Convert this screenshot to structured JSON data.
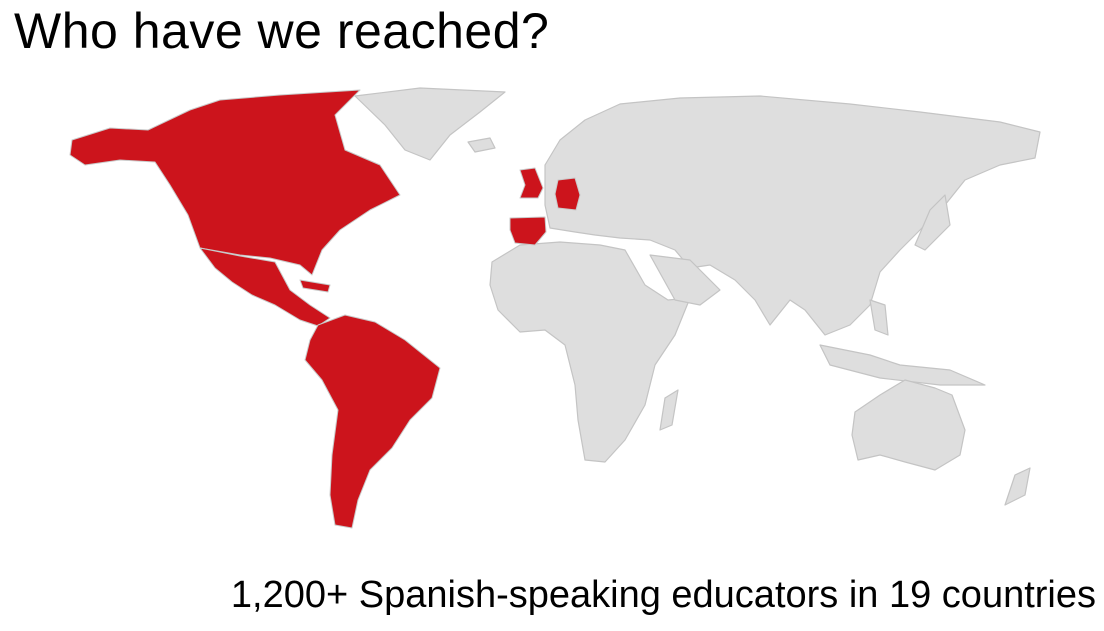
{
  "slide": {
    "title": "Who have we reached?",
    "subtitle": "1,200+ Spanish-speaking educators in 19 countries"
  },
  "map": {
    "type": "choropleth world map",
    "highlight_color": "#cc141c",
    "base_color": "#dedede",
    "highlighted_regions": [
      "Canada",
      "United States",
      "Mexico",
      "Central America",
      "Cuba",
      "South America",
      "Spain",
      "United Kingdom",
      "Germany"
    ]
  }
}
